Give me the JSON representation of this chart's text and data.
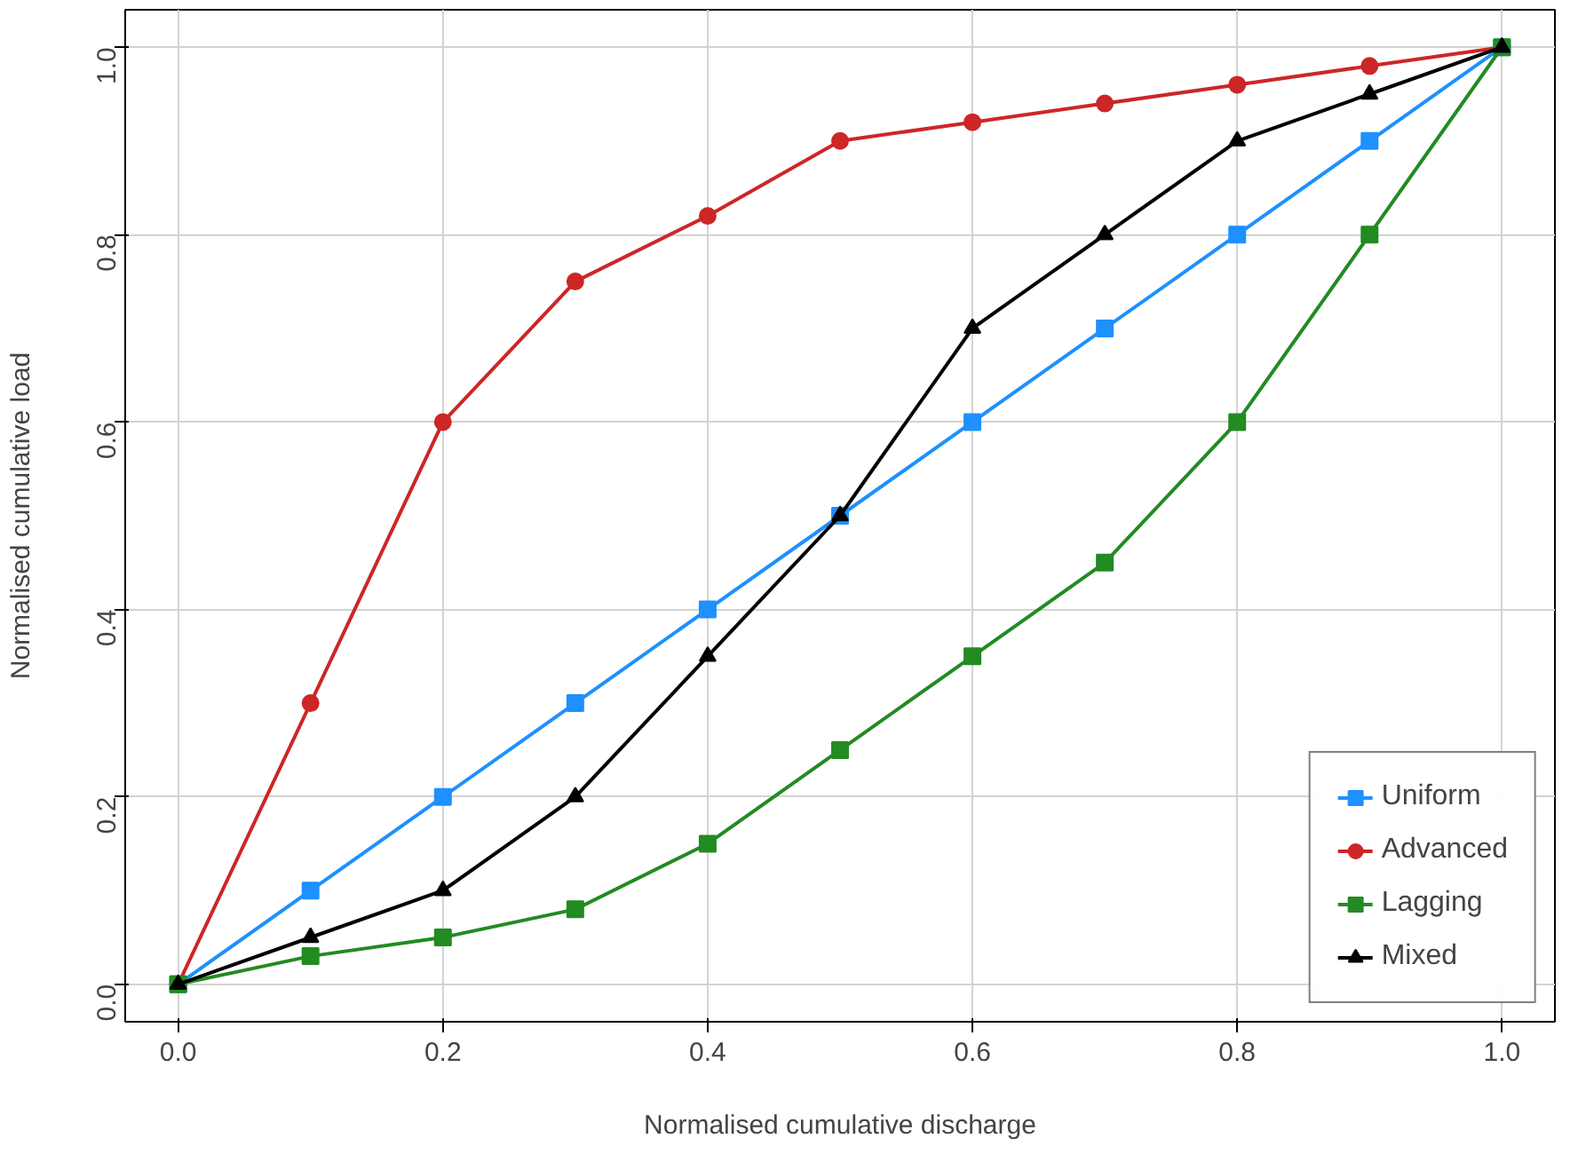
{
  "chart_data": {
    "type": "line",
    "xlabel": "Normalised cumulative discharge",
    "ylabel": "Normalised cumulative load",
    "x": [
      0,
      0.1,
      0.2,
      0.3,
      0.4,
      0.5,
      0.6,
      0.7,
      0.8,
      0.9,
      1.0
    ],
    "series": [
      {
        "name": "Uniform",
        "color": "#1e90ff",
        "marker": "square",
        "values": [
          0,
          0.1,
          0.2,
          0.3,
          0.4,
          0.5,
          0.6,
          0.7,
          0.8,
          0.9,
          1.0
        ]
      },
      {
        "name": "Advanced",
        "color": "#cd2626",
        "marker": "circle",
        "values": [
          0,
          0.3,
          0.6,
          0.75,
          0.82,
          0.9,
          0.92,
          0.94,
          0.96,
          0.98,
          1.0
        ]
      },
      {
        "name": "Lagging",
        "color": "#228b22",
        "marker": "square",
        "values": [
          0,
          0.03,
          0.05,
          0.08,
          0.15,
          0.25,
          0.35,
          0.45,
          0.6,
          0.8,
          1.0
        ]
      },
      {
        "name": "Mixed",
        "color": "#000000",
        "marker": "triangle",
        "values": [
          0,
          0.05,
          0.1,
          0.2,
          0.35,
          0.5,
          0.7,
          0.8,
          0.9,
          0.95,
          1.0
        ]
      }
    ],
    "xlim": [
      -0.04,
      1.04
    ],
    "ylim": [
      -0.04,
      1.04
    ],
    "xticks": [
      {
        "value": 0,
        "label": "0.0"
      },
      0.2,
      0.4,
      0.6,
      0.8,
      {
        "value": 1,
        "label": "1.0"
      }
    ],
    "yticks": [
      {
        "value": 0,
        "label": "0.0"
      },
      0.2,
      0.4,
      0.6,
      0.8,
      {
        "value": 1,
        "label": "1.0"
      }
    ],
    "grid": true,
    "legend": "bottom right",
    "line_style": "solid"
  }
}
